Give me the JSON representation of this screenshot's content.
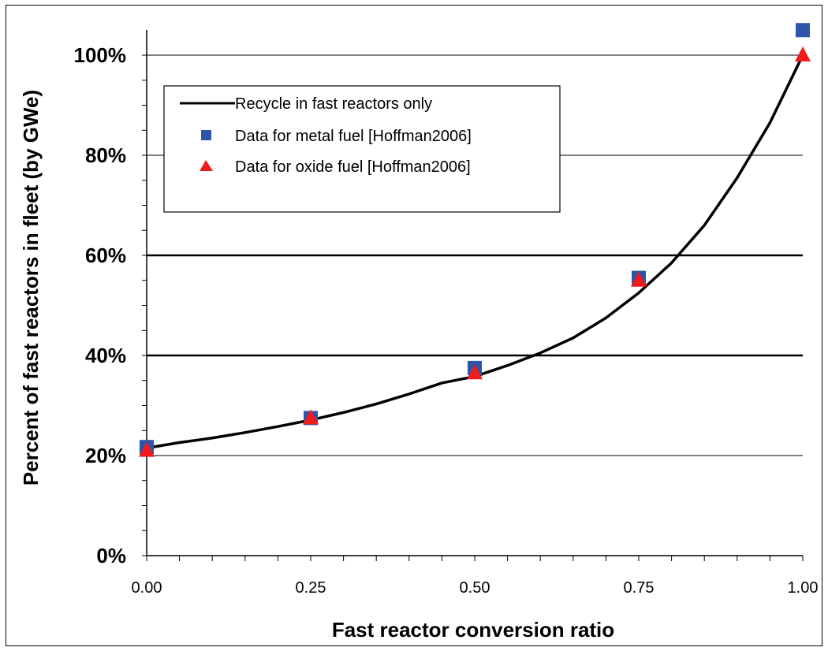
{
  "chart_data": {
    "type": "line",
    "title": "",
    "xlabel": "Fast reactor conversion ratio",
    "ylabel": "Percent of fast reactors in fleet (by GWe)",
    "xlim": [
      0,
      1
    ],
    "ylim": [
      0,
      100
    ],
    "x_ticks": [
      "0.00",
      "0.25",
      "0.50",
      "0.75",
      "1.00"
    ],
    "y_ticks": [
      "0%",
      "20%",
      "40%",
      "60%",
      "80%",
      "100%"
    ],
    "grid": "horizontal",
    "legend_position": "top-left",
    "series": [
      {
        "name": "Recycle in fast reactors only",
        "kind": "line",
        "color": "#000000",
        "x": [
          0,
          0.05,
          0.1,
          0.15,
          0.2,
          0.25,
          0.3,
          0.35,
          0.4,
          0.45,
          0.5,
          0.55,
          0.6,
          0.65,
          0.7,
          0.75,
          0.8,
          0.85,
          0.9,
          0.95,
          1.0
        ],
        "y": [
          21.5,
          22.6,
          23.5,
          24.6,
          25.8,
          27.1,
          28.6,
          30.3,
          32.3,
          34.5,
          35.8,
          38.0,
          40.5,
          43.5,
          47.5,
          52.5,
          58.5,
          66.0,
          75.5,
          86.5,
          100.0
        ]
      },
      {
        "name": "Data for metal fuel [Hoffman2006]",
        "kind": "square",
        "color": "#2f55a8",
        "x": [
          0,
          0.25,
          0.5,
          0.75,
          1.0
        ],
        "y": [
          21.7,
          27.5,
          37.5,
          55.5,
          105.0
        ]
      },
      {
        "name": "Data for oxide fuel [Hoffman2006]",
        "kind": "triangle",
        "color": "#f01c1c",
        "x": [
          0,
          0.25,
          0.5,
          0.75,
          1.0
        ],
        "y": [
          21.0,
          27.5,
          36.5,
          55.0,
          100.0
        ]
      }
    ]
  }
}
